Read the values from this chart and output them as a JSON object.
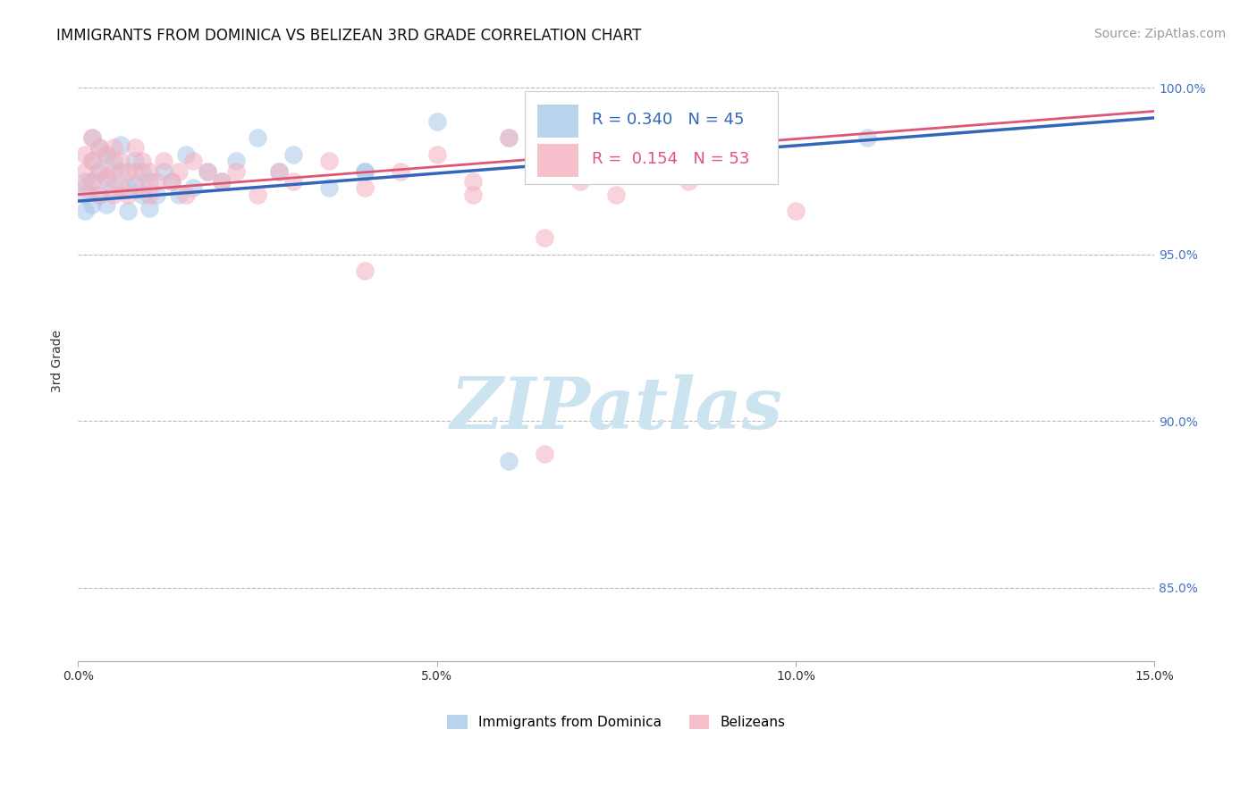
{
  "title": "IMMIGRANTS FROM DOMINICA VS BELIZEAN 3RD GRADE CORRELATION CHART",
  "source_text": "Source: ZipAtlas.com",
  "ylabel": "3rd Grade",
  "xmin": 0.0,
  "xmax": 0.15,
  "ymin": 0.828,
  "ymax": 1.008,
  "yticks": [
    0.85,
    0.9,
    0.95,
    1.0
  ],
  "ytick_labels": [
    "85.0%",
    "90.0%",
    "95.0%",
    "100.0%"
  ],
  "xticks": [
    0.0,
    0.05,
    0.1,
    0.15
  ],
  "xtick_labels": [
    "0.0%",
    "5.0%",
    "10.0%",
    "15.0%"
  ],
  "blue_R": 0.34,
  "blue_N": 45,
  "pink_R": 0.154,
  "pink_N": 53,
  "blue_color": "#a8c8e8",
  "pink_color": "#f4b0c0",
  "blue_line_color": "#3366bb",
  "pink_line_color": "#e05575",
  "blue_line_y0": 0.966,
  "blue_line_y1": 0.991,
  "pink_line_y0": 0.968,
  "pink_line_y1": 0.993,
  "blue_scatter_x": [
    0.001,
    0.001,
    0.001,
    0.002,
    0.002,
    0.002,
    0.002,
    0.003,
    0.003,
    0.003,
    0.004,
    0.004,
    0.004,
    0.005,
    0.005,
    0.006,
    0.006,
    0.007,
    0.007,
    0.008,
    0.008,
    0.009,
    0.009,
    0.01,
    0.01,
    0.011,
    0.012,
    0.013,
    0.014,
    0.015,
    0.016,
    0.018,
    0.02,
    0.022,
    0.025,
    0.028,
    0.03,
    0.035,
    0.04,
    0.05,
    0.06,
    0.075,
    0.11,
    0.06,
    0.04
  ],
  "blue_scatter_y": [
    0.972,
    0.968,
    0.963,
    0.985,
    0.978,
    0.972,
    0.965,
    0.982,
    0.975,
    0.968,
    0.98,
    0.973,
    0.965,
    0.978,
    0.97,
    0.983,
    0.975,
    0.97,
    0.963,
    0.978,
    0.971,
    0.975,
    0.968,
    0.972,
    0.964,
    0.968,
    0.975,
    0.972,
    0.968,
    0.98,
    0.97,
    0.975,
    0.972,
    0.978,
    0.985,
    0.975,
    0.98,
    0.97,
    0.975,
    0.99,
    0.985,
    0.982,
    0.985,
    0.888,
    0.975
  ],
  "pink_scatter_x": [
    0.001,
    0.001,
    0.001,
    0.002,
    0.002,
    0.002,
    0.003,
    0.003,
    0.003,
    0.004,
    0.004,
    0.005,
    0.005,
    0.005,
    0.006,
    0.006,
    0.007,
    0.007,
    0.008,
    0.008,
    0.009,
    0.009,
    0.01,
    0.01,
    0.011,
    0.012,
    0.013,
    0.014,
    0.015,
    0.016,
    0.018,
    0.02,
    0.022,
    0.025,
    0.028,
    0.03,
    0.035,
    0.04,
    0.045,
    0.05,
    0.055,
    0.06,
    0.065,
    0.07,
    0.075,
    0.08,
    0.085,
    0.09,
    0.04,
    0.055,
    0.065,
    0.1,
    0.065
  ],
  "pink_scatter_y": [
    0.98,
    0.975,
    0.97,
    0.985,
    0.978,
    0.972,
    0.982,
    0.975,
    0.968,
    0.98,
    0.973,
    0.982,
    0.975,
    0.968,
    0.978,
    0.97,
    0.975,
    0.968,
    0.982,
    0.975,
    0.978,
    0.97,
    0.975,
    0.968,
    0.972,
    0.978,
    0.972,
    0.975,
    0.968,
    0.978,
    0.975,
    0.972,
    0.975,
    0.968,
    0.975,
    0.972,
    0.978,
    0.97,
    0.975,
    0.98,
    0.972,
    0.985,
    0.975,
    0.972,
    0.968,
    0.975,
    0.972,
    0.975,
    0.945,
    0.968,
    0.955,
    0.963,
    0.89
  ],
  "legend_box_color": "#ffffff",
  "legend_box_edge": "#cccccc",
  "watermark_text": "ZIPatlas",
  "watermark_color": "#cce4f0",
  "title_fontsize": 12,
  "axis_label_fontsize": 10,
  "tick_fontsize": 10,
  "source_fontsize": 10,
  "right_tick_color": "#4472c4"
}
